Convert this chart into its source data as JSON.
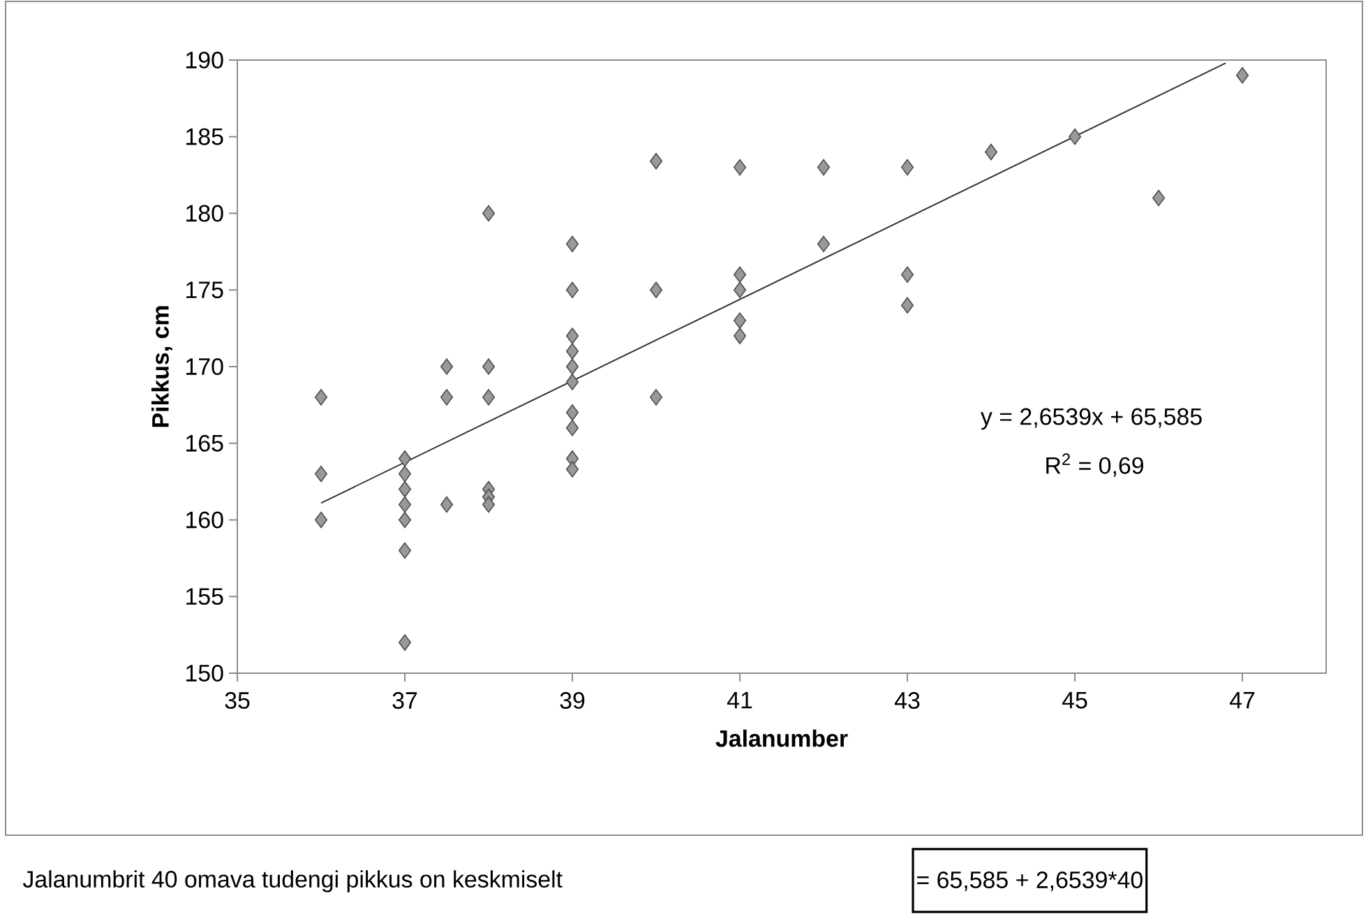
{
  "chart_data": {
    "type": "scatter",
    "xlabel": "Jalanumber",
    "ylabel": "Pikkus, cm",
    "xlim": [
      35,
      48
    ],
    "xticks": [
      35,
      37,
      39,
      41,
      43,
      45,
      47
    ],
    "ylim": [
      150,
      190
    ],
    "yticks": [
      150,
      155,
      160,
      165,
      170,
      175,
      180,
      185,
      190
    ],
    "marker": "diamond",
    "series": [
      {
        "color": "#999999",
        "x": [
          36,
          36,
          36,
          37,
          37,
          37,
          37,
          37,
          37,
          37,
          37.5,
          37.5,
          37.5,
          38,
          38,
          38,
          38,
          38,
          38,
          39,
          39,
          39,
          39,
          39,
          39,
          39,
          39,
          39,
          39,
          40,
          40,
          40,
          41,
          41,
          41,
          41,
          41,
          42,
          42,
          43,
          43,
          43,
          44,
          45,
          46,
          47
        ],
        "values": [
          168,
          163,
          160,
          164,
          163,
          162,
          161,
          160,
          158,
          152,
          170,
          168,
          161,
          180,
          170,
          168,
          162,
          161.5,
          161,
          178,
          175,
          172,
          171,
          170,
          169,
          167,
          166,
          164,
          163.3,
          183.4,
          175,
          168,
          183,
          176,
          175,
          173,
          172,
          183,
          178,
          183,
          176,
          174,
          184,
          185,
          181,
          189
        ]
      },
      {
        "type": "line",
        "color": "#333333",
        "marker": "none",
        "x": [
          36,
          46.8
        ],
        "values": [
          161.1,
          189.8
        ]
      }
    ],
    "annotations": [
      "y = 2,6539x + 65,585",
      "R$^{2}$ = 0,69",
      "Jalanumbrit 40 omava tudengi pikkus on keskmiselt",
      "= 65,585 + 2,6539*40"
    ]
  }
}
